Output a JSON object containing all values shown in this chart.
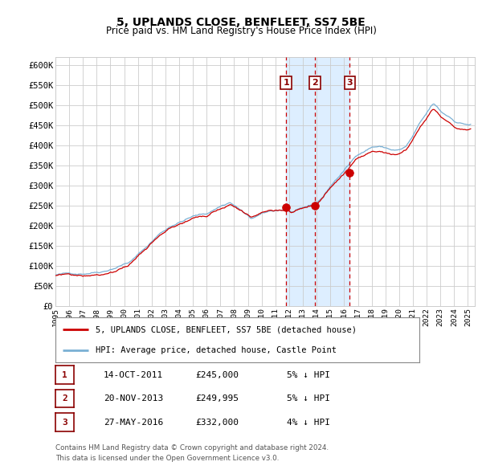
{
  "title": "5, UPLANDS CLOSE, BENFLEET, SS7 5BE",
  "subtitle": "Price paid vs. HM Land Registry's House Price Index (HPI)",
  "ylim": [
    0,
    620000
  ],
  "xlim_start": 1995.0,
  "xlim_end": 2025.5,
  "yticks": [
    0,
    50000,
    100000,
    150000,
    200000,
    250000,
    300000,
    350000,
    400000,
    450000,
    500000,
    550000,
    600000
  ],
  "ytick_labels": [
    "£0",
    "£50K",
    "£100K",
    "£150K",
    "£200K",
    "£250K",
    "£300K",
    "£350K",
    "£400K",
    "£450K",
    "£500K",
    "£550K",
    "£600K"
  ],
  "xtick_years": [
    1995,
    1996,
    1997,
    1998,
    1999,
    2000,
    2001,
    2002,
    2003,
    2004,
    2005,
    2006,
    2007,
    2008,
    2009,
    2010,
    2011,
    2012,
    2013,
    2014,
    2015,
    2016,
    2017,
    2018,
    2019,
    2020,
    2021,
    2022,
    2023,
    2024,
    2025
  ],
  "sale_dates": [
    "14-OCT-2011",
    "20-NOV-2013",
    "27-MAY-2016"
  ],
  "sale_prices": [
    245000,
    249995,
    332000
  ],
  "sale_hpi_pct": [
    "5% ↓ HPI",
    "5% ↓ HPI",
    "4% ↓ HPI"
  ],
  "sale_years": [
    2011.79,
    2013.89,
    2016.41
  ],
  "legend_house": "5, UPLANDS CLOSE, BENFLEET, SS7 5BE (detached house)",
  "legend_hpi": "HPI: Average price, detached house, Castle Point",
  "footnote1": "Contains HM Land Registry data © Crown copyright and database right 2024.",
  "footnote2": "This data is licensed under the Open Government Licence v3.0.",
  "house_color": "#cc0000",
  "hpi_color": "#7ab0d4",
  "highlight_color": "#ddeeff",
  "grid_color": "#cccccc",
  "background_color": "#ffffff"
}
